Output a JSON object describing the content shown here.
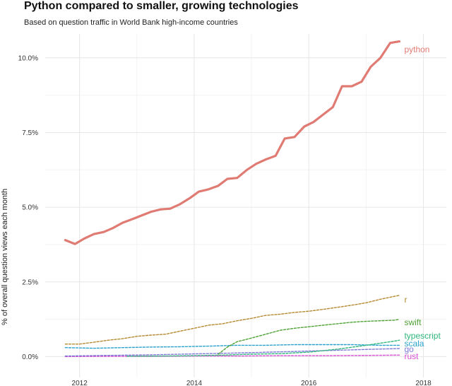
{
  "chart_data": {
    "type": "line",
    "title": "Python compared to smaller, growing technologies",
    "subtitle": "Based on question traffic in World Bank high-income countries",
    "xlabel": "",
    "ylabel": "% of overall question views each month",
    "xlim": [
      2011.4,
      2018.4
    ],
    "ylim": [
      -0.7,
      10.8
    ],
    "x_ticks": [
      2012,
      2014,
      2016,
      2018
    ],
    "x_tick_labels": [
      "2012",
      "2014",
      "2016",
      "2018"
    ],
    "y_ticks": [
      0,
      2.5,
      5,
      7.5,
      10
    ],
    "y_tick_labels": [
      "0.0%",
      "2.5%",
      "5.0%",
      "7.5%",
      "10.0%"
    ],
    "grid": true,
    "legend": "direct labels at line ends",
    "series": [
      {
        "name": "python",
        "color": "#E07B73",
        "style": "solid",
        "x": [
          2011.75,
          2011.92,
          2012.08,
          2012.25,
          2012.42,
          2012.58,
          2012.75,
          2012.92,
          2013.08,
          2013.25,
          2013.42,
          2013.58,
          2013.75,
          2013.92,
          2014.08,
          2014.25,
          2014.42,
          2014.58,
          2014.75,
          2014.92,
          2015.08,
          2015.25,
          2015.42,
          2015.58,
          2015.75,
          2015.92,
          2016.08,
          2016.25,
          2016.42,
          2016.58,
          2016.75,
          2016.92,
          2017.08,
          2017.25,
          2017.42,
          2017.58
        ],
        "y": [
          3.9,
          3.77,
          3.95,
          4.1,
          4.17,
          4.3,
          4.48,
          4.6,
          4.72,
          4.85,
          4.93,
          4.95,
          5.1,
          5.3,
          5.52,
          5.6,
          5.72,
          5.95,
          5.98,
          6.25,
          6.45,
          6.6,
          6.72,
          7.3,
          7.35,
          7.7,
          7.85,
          8.1,
          8.35,
          9.05,
          9.05,
          9.2,
          9.7,
          10.0,
          10.5,
          10.55
        ],
        "end_label": "python"
      },
      {
        "name": "r",
        "color": "#B58A2F",
        "style": "dashed",
        "x": [
          2011.75,
          2012.0,
          2012.25,
          2012.5,
          2012.75,
          2013.0,
          2013.25,
          2013.5,
          2013.75,
          2014.0,
          2014.25,
          2014.5,
          2014.75,
          2015.0,
          2015.25,
          2015.5,
          2015.75,
          2016.0,
          2016.25,
          2016.5,
          2016.75,
          2017.0,
          2017.25,
          2017.5,
          2017.58
        ],
        "y": [
          0.42,
          0.42,
          0.48,
          0.55,
          0.6,
          0.68,
          0.72,
          0.75,
          0.85,
          0.95,
          1.05,
          1.1,
          1.2,
          1.28,
          1.38,
          1.42,
          1.48,
          1.52,
          1.58,
          1.65,
          1.72,
          1.8,
          1.92,
          2.02,
          2.05
        ],
        "end_label": "r"
      },
      {
        "name": "swift",
        "color": "#4EA235",
        "style": "dashed",
        "x": [
          2014.42,
          2014.58,
          2014.75,
          2015.0,
          2015.25,
          2015.5,
          2015.75,
          2016.0,
          2016.25,
          2016.5,
          2016.75,
          2017.0,
          2017.25,
          2017.5,
          2017.58
        ],
        "y": [
          0.08,
          0.32,
          0.5,
          0.62,
          0.75,
          0.88,
          0.95,
          1.0,
          1.05,
          1.1,
          1.15,
          1.18,
          1.2,
          1.22,
          1.25
        ],
        "end_label": "swift"
      },
      {
        "name": "typescript",
        "color": "#2FB77C",
        "style": "dashed",
        "x": [
          2012.83,
          2013.5,
          2014.0,
          2014.5,
          2015.0,
          2015.5,
          2016.0,
          2016.5,
          2017.0,
          2017.5,
          2017.58
        ],
        "y": [
          0.01,
          0.02,
          0.03,
          0.05,
          0.08,
          0.1,
          0.15,
          0.25,
          0.38,
          0.52,
          0.55
        ],
        "end_label": "typescript"
      },
      {
        "name": "scala",
        "color": "#2BA2CF",
        "style": "dashed",
        "x": [
          2011.75,
          2012.25,
          2012.75,
          2013.25,
          2013.75,
          2014.25,
          2014.75,
          2015.25,
          2015.75,
          2016.25,
          2016.75,
          2017.25,
          2017.58
        ],
        "y": [
          0.3,
          0.28,
          0.3,
          0.32,
          0.33,
          0.35,
          0.38,
          0.38,
          0.4,
          0.4,
          0.4,
          0.38,
          0.38
        ],
        "end_label": "scala"
      },
      {
        "name": "go",
        "color": "#7E7AD8",
        "style": "dashed",
        "x": [
          2011.75,
          2012.5,
          2013.25,
          2014.0,
          2014.75,
          2015.5,
          2016.25,
          2017.0,
          2017.58
        ],
        "y": [
          0.02,
          0.04,
          0.06,
          0.09,
          0.12,
          0.16,
          0.2,
          0.24,
          0.27
        ],
        "end_label": "go"
      },
      {
        "name": "rust",
        "color": "#DA4FD4",
        "style": "dashed",
        "x": [
          2011.75,
          2012.5,
          2013.25,
          2014.0,
          2014.75,
          2015.5,
          2016.25,
          2017.0,
          2017.58
        ],
        "y": [
          0.0,
          0.01,
          0.01,
          0.02,
          0.02,
          0.03,
          0.03,
          0.04,
          0.05
        ],
        "end_label": "rust"
      }
    ]
  }
}
